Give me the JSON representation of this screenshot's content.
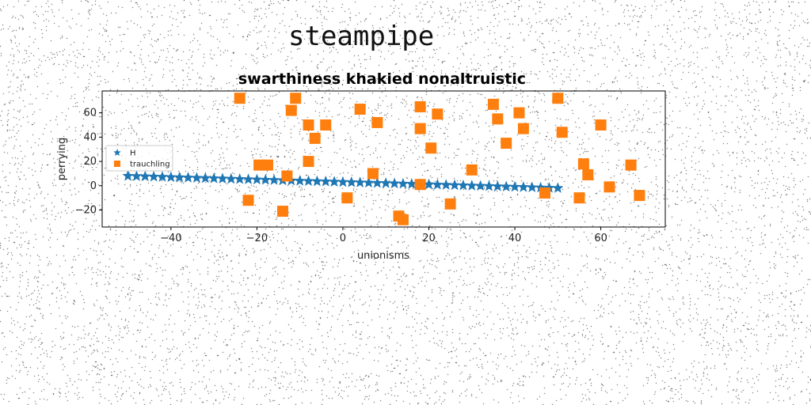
{
  "suptitle": "steampipe",
  "chart_data": {
    "type": "scatter",
    "title": "swarthiness khakied nonaltruistic",
    "xlabel": "unionisms",
    "ylabel": "perrying",
    "xlim": [
      -56,
      75
    ],
    "ylim": [
      -34,
      78
    ],
    "xticks": [
      -40,
      -20,
      0,
      20,
      40,
      60
    ],
    "yticks": [
      -20,
      0,
      20,
      40,
      60
    ],
    "xtick_labels": [
      "−40",
      "−20",
      "0",
      "20",
      "40",
      "60"
    ],
    "ytick_labels": [
      "−20",
      "0",
      "20",
      "40",
      "60"
    ],
    "legend_position": "center-left",
    "grid": false,
    "series": [
      {
        "name": "H",
        "marker": "star",
        "color": "#1f77b4",
        "x": [
          -50,
          -48,
          -46,
          -44,
          -42,
          -40,
          -38,
          -36,
          -34,
          -32,
          -30,
          -28,
          -26,
          -24,
          -22,
          -20,
          -18,
          -16,
          -14,
          -12,
          -10,
          -8,
          -6,
          -4,
          -2,
          0,
          2,
          4,
          6,
          8,
          10,
          12,
          14,
          16,
          18,
          20,
          22,
          24,
          26,
          28,
          30,
          32,
          34,
          36,
          38,
          40,
          42,
          44,
          46,
          48,
          50
        ],
        "y": [
          8,
          7.8,
          7.6,
          7.4,
          7.2,
          7,
          6.8,
          6.6,
          6.4,
          6.2,
          6,
          5.8,
          5.6,
          5.4,
          5.2,
          5,
          4.8,
          4.6,
          4.4,
          4.2,
          4,
          3.8,
          3.6,
          3.4,
          3.2,
          3,
          2.8,
          2.6,
          2.4,
          2.2,
          2,
          1.8,
          1.6,
          1.4,
          1.2,
          1,
          0.8,
          0.6,
          0.4,
          0.2,
          0,
          -0.2,
          -0.4,
          -0.6,
          -0.8,
          -1,
          -1.2,
          -1.4,
          -1.6,
          -1.8,
          -2
        ]
      },
      {
        "name": "trauchling",
        "marker": "square",
        "color": "#ff7f0e",
        "x": [
          -24,
          -22,
          -19.5,
          -17.5,
          -14,
          -13,
          -12,
          -11,
          -8,
          -8,
          -6.5,
          -4,
          1,
          4,
          7,
          8,
          13,
          14,
          18,
          18,
          18,
          20.5,
          22,
          25,
          30,
          35,
          36,
          38,
          41,
          42,
          47,
          50,
          51,
          55,
          56,
          57,
          60,
          62,
          67,
          69
        ],
        "y": [
          72,
          -12,
          17,
          17,
          -21,
          8,
          62,
          72,
          20,
          50,
          39,
          50,
          -10,
          63,
          10,
          52,
          -25,
          -28,
          65,
          1,
          47,
          31,
          59,
          -15,
          13,
          67,
          55,
          35,
          60,
          47,
          -6,
          72,
          44,
          -10,
          18,
          9,
          50,
          -1,
          17,
          -8
        ]
      }
    ]
  }
}
